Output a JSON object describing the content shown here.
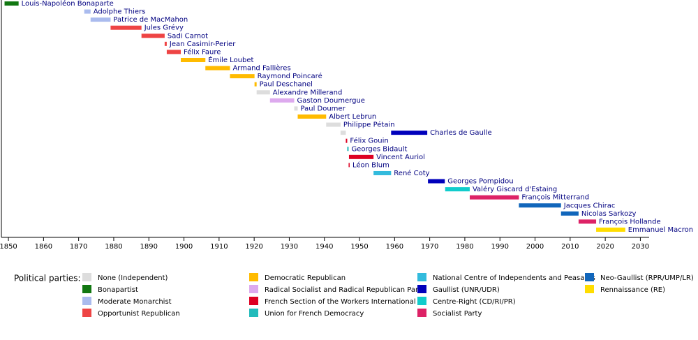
{
  "chart_data": {
    "type": "timeline",
    "xlim": [
      1848,
      2032.5
    ],
    "xticks": [
      1850,
      1860,
      1870,
      1880,
      1890,
      1900,
      1910,
      1920,
      1930,
      1940,
      1950,
      1960,
      1970,
      1980,
      1990,
      2000,
      2010,
      2020,
      2030
    ],
    "legend_title": "Political parties:",
    "series": [
      {
        "name": "None (Independent)",
        "color": "#dddddd"
      },
      {
        "name": "Bonapartist",
        "color": "#117711"
      },
      {
        "name": "Moderate Monarchist",
        "color": "#aabbee"
      },
      {
        "name": "Opportunist Republican",
        "color": "#ee4444"
      },
      {
        "name": "Democratic Republican",
        "color": "#ffbb00"
      },
      {
        "name": "Radical Socialist and Radical Republican Party",
        "color": "#ddaaee"
      },
      {
        "name": "French Section of the Workers International",
        "color": "#dd0022"
      },
      {
        "name": "Union for French Democracy",
        "color": "#22bbbb"
      },
      {
        "name": "National Centre of Independents and Peasants",
        "color": "#33bbdd"
      },
      {
        "name": "Gaullist (UNR/UDR)",
        "color": "#0000bb"
      },
      {
        "name": "Centre-Right (CD/RI/PR)",
        "color": "#11cccc"
      },
      {
        "name": "Socialist Party",
        "color": "#dd2266"
      },
      {
        "name": "Neo-Gaullist (RPR/UMP/LR)",
        "color": "#1166bb"
      },
      {
        "name": "Rennaissance (RE)",
        "color": "#ffdd00"
      }
    ],
    "rows": [
      {
        "label": "Louis-Napoléon Bonaparte",
        "spans": [
          {
            "start": 1848.9,
            "end": 1852.9,
            "party": "Bonapartist"
          }
        ]
      },
      {
        "label": "Adolphe Thiers",
        "spans": [
          {
            "start": 1871.6,
            "end": 1873.4,
            "party": "Moderate Monarchist"
          }
        ]
      },
      {
        "label": "Patrice de MacMahon",
        "spans": [
          {
            "start": 1873.4,
            "end": 1879.1,
            "party": "Moderate Monarchist"
          }
        ]
      },
      {
        "label": "Jules Grévy",
        "spans": [
          {
            "start": 1879.1,
            "end": 1887.9,
            "party": "Opportunist Republican"
          }
        ]
      },
      {
        "label": "Sadi Carnot",
        "spans": [
          {
            "start": 1887.9,
            "end": 1894.5,
            "party": "Opportunist Republican"
          }
        ]
      },
      {
        "label": "Jean Casimir-Perier",
        "spans": [
          {
            "start": 1894.5,
            "end": 1895.1,
            "party": "Opportunist Republican"
          }
        ]
      },
      {
        "label": "Félix Faure",
        "spans": [
          {
            "start": 1895.1,
            "end": 1899.1,
            "party": "Opportunist Republican"
          }
        ]
      },
      {
        "label": "Émile Loubet",
        "spans": [
          {
            "start": 1899.1,
            "end": 1906.1,
            "party": "Democratic Republican"
          }
        ]
      },
      {
        "label": "Armand Fallières",
        "spans": [
          {
            "start": 1906.1,
            "end": 1913.1,
            "party": "Democratic Republican"
          }
        ]
      },
      {
        "label": "Raymond Poincaré",
        "spans": [
          {
            "start": 1913.1,
            "end": 1920.1,
            "party": "Democratic Republican"
          }
        ]
      },
      {
        "label": "Paul Deschanel",
        "spans": [
          {
            "start": 1920.1,
            "end": 1920.7,
            "party": "Democratic Republican"
          }
        ]
      },
      {
        "label": "Alexandre Millerand",
        "spans": [
          {
            "start": 1920.7,
            "end": 1924.5,
            "party": "None (Independent)"
          }
        ]
      },
      {
        "label": "Gaston Doumergue",
        "spans": [
          {
            "start": 1924.5,
            "end": 1931.4,
            "party": "Radical Socialist and Radical Republican Party"
          }
        ]
      },
      {
        "label": "Paul Doumer",
        "spans": [
          {
            "start": 1931.4,
            "end": 1932.4,
            "party": "None (Independent)"
          }
        ]
      },
      {
        "label": "Albert Lebrun",
        "spans": [
          {
            "start": 1932.4,
            "end": 1940.5,
            "party": "Democratic Republican"
          }
        ]
      },
      {
        "label": "Philippe Pétain",
        "spans": [
          {
            "start": 1940.5,
            "end": 1944.6,
            "party": "None (Independent)"
          }
        ]
      },
      {
        "label": "Charles de Gaulle",
        "spans": [
          {
            "start": 1944.6,
            "end": 1946.1,
            "party": "None (Independent)"
          },
          {
            "start": 1959.0,
            "end": 1969.3,
            "party": "Gaullist (UNR/UDR)"
          }
        ]
      },
      {
        "label": "Félix Gouin",
        "spans": [
          {
            "start": 1946.1,
            "end": 1946.5,
            "party": "French Section of the Workers International"
          }
        ]
      },
      {
        "label": "Georges Bidault",
        "spans": [
          {
            "start": 1946.5,
            "end": 1946.9,
            "party": "Union for French Democracy"
          }
        ]
      },
      {
        "label": "Vincent Auriol",
        "spans": [
          {
            "start": 1947.0,
            "end": 1954.0,
            "party": "French Section of the Workers International"
          }
        ]
      },
      {
        "label": "Léon Blum",
        "spans": [
          {
            "start": 1946.9,
            "end": 1947.0,
            "party": "French Section of the Workers International"
          }
        ]
      },
      {
        "label": "René Coty",
        "spans": [
          {
            "start": 1954.0,
            "end": 1959.0,
            "party": "National Centre of Independents and Peasants"
          }
        ]
      },
      {
        "label": "Georges Pompidou",
        "spans": [
          {
            "start": 1969.5,
            "end": 1974.3,
            "party": "Gaullist (UNR/UDR)"
          }
        ]
      },
      {
        "label": "Valéry Giscard d'Estaing",
        "spans": [
          {
            "start": 1974.4,
            "end": 1981.4,
            "party": "Centre-Right (CD/RI/PR)"
          }
        ]
      },
      {
        "label": "François Mitterrand",
        "spans": [
          {
            "start": 1981.4,
            "end": 1995.4,
            "party": "Socialist Party"
          }
        ]
      },
      {
        "label": "Jacques Chirac",
        "spans": [
          {
            "start": 1995.4,
            "end": 2007.4,
            "party": "Neo-Gaullist (RPR/UMP/LR)"
          }
        ]
      },
      {
        "label": "Nicolas Sarkozy",
        "spans": [
          {
            "start": 2007.4,
            "end": 2012.4,
            "party": "Neo-Gaullist (RPR/UMP/LR)"
          }
        ]
      },
      {
        "label": "François Hollande",
        "spans": [
          {
            "start": 2012.4,
            "end": 2017.4,
            "party": "Socialist Party"
          }
        ]
      },
      {
        "label": "Emmanuel Macron",
        "spans": [
          {
            "start": 2017.4,
            "end": 2025.7,
            "party": "Rennaissance (RE)"
          }
        ]
      }
    ]
  }
}
